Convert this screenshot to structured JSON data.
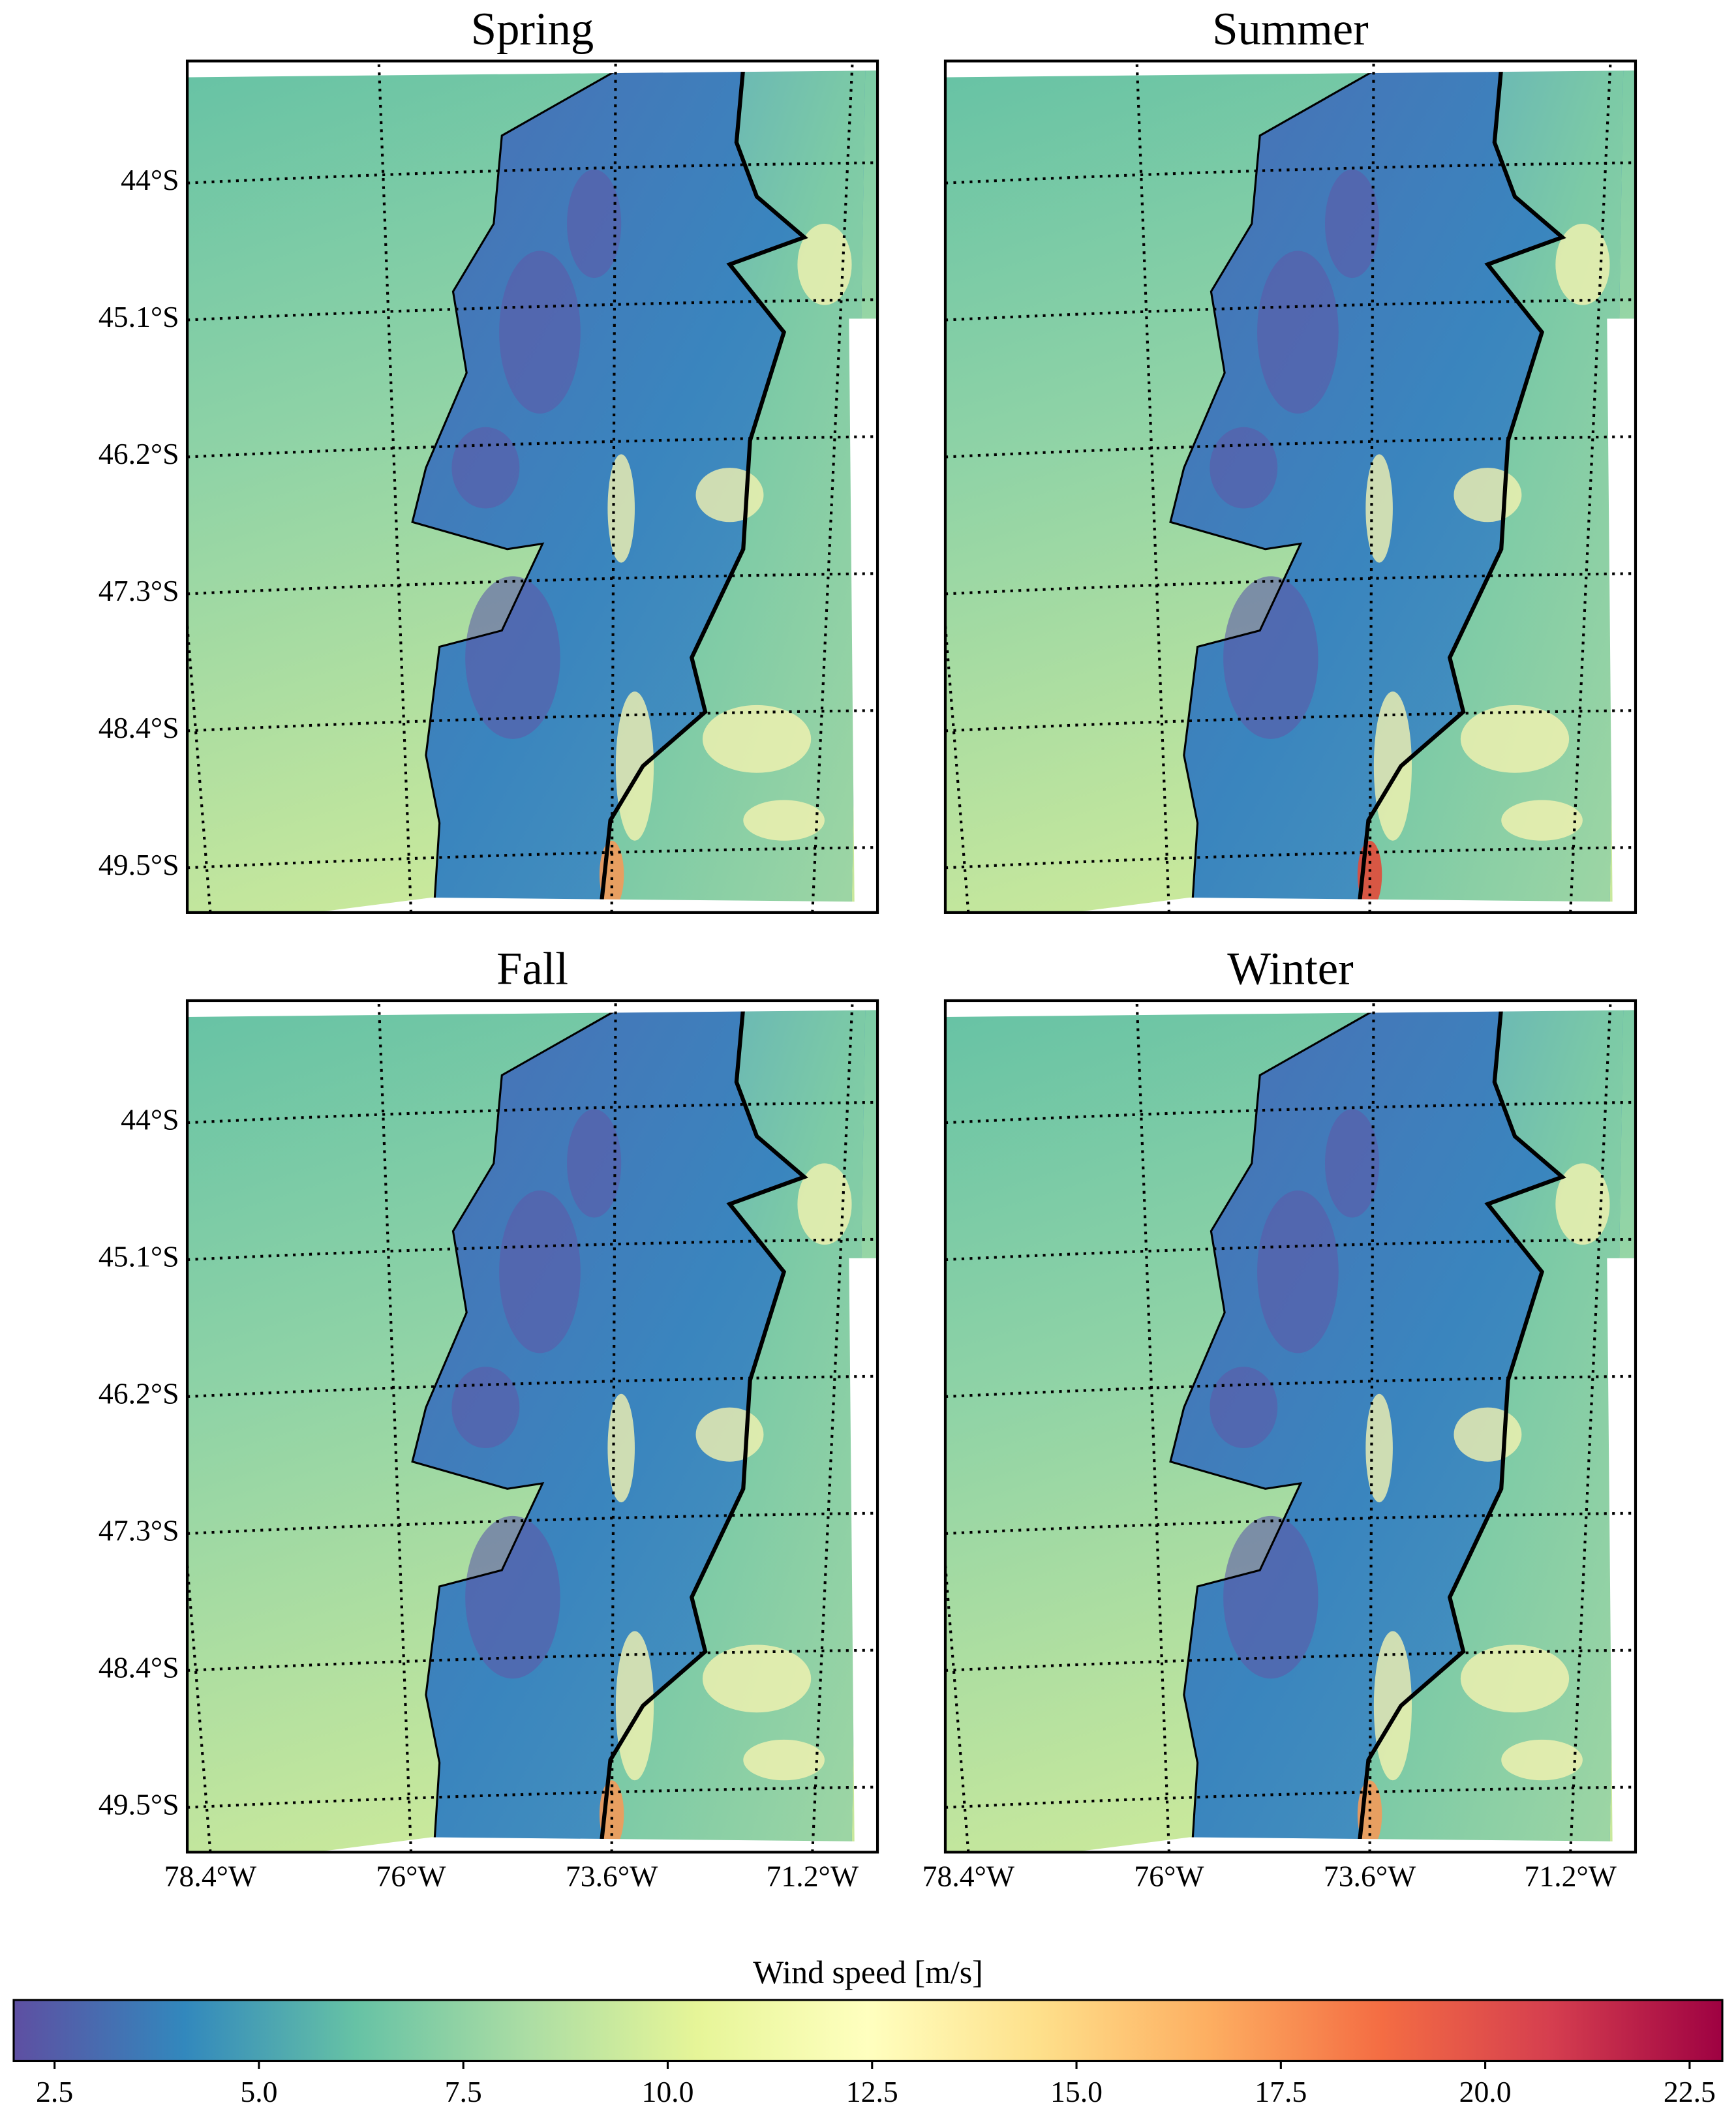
{
  "figure": {
    "panels": [
      {
        "title": "Spring"
      },
      {
        "title": "Summer"
      },
      {
        "title": "Fall"
      },
      {
        "title": "Winter"
      }
    ],
    "lat_ticks": [
      {
        "value": 44,
        "label": "44°S"
      },
      {
        "value": 45.1,
        "label": "45.1°S"
      },
      {
        "value": 46.2,
        "label": "46.2°S"
      },
      {
        "value": 47.3,
        "label": "47.3°S"
      },
      {
        "value": 48.4,
        "label": "48.4°S"
      },
      {
        "value": 49.5,
        "label": "49.5°S"
      }
    ],
    "lon_ticks": [
      {
        "value": 78.4,
        "label": "78.4°W"
      },
      {
        "value": 76,
        "label": "76°W"
      },
      {
        "value": 73.6,
        "label": "73.6°W"
      },
      {
        "value": 71.2,
        "label": "71.2°W"
      }
    ],
    "colorbar": {
      "label": "Wind speed [m/s]",
      "colormap": "Spectral_r",
      "clim": [
        2,
        22.9
      ],
      "ticks": [
        2.5,
        {
          "value": 5,
          "label": "5.0"
        },
        7.5,
        {
          "value": 10,
          "label": "10.0"
        },
        12.5,
        {
          "value": 15,
          "label": "15.0"
        },
        17.5,
        {
          "value": 20,
          "label": "20.0"
        },
        22.5
      ]
    }
  }
}
